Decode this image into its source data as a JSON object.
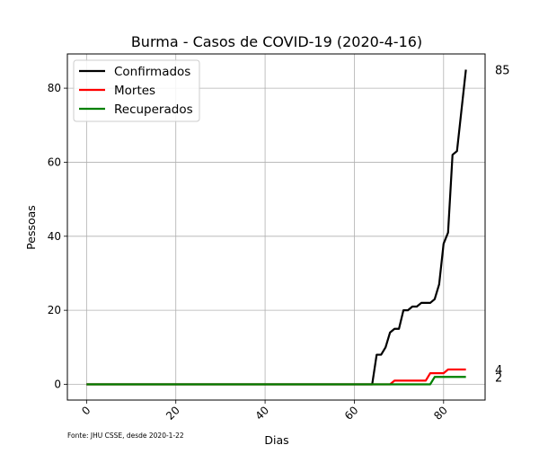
{
  "chart_data": {
    "type": "line",
    "title": "Burma - Casos de COVID-19 (2020-4-16)",
    "xlabel": "Dias",
    "ylabel": "Pessoas",
    "xlim": [
      -4.3,
      89.3
    ],
    "ylim": [
      -4.25,
      89.25
    ],
    "xticks": [
      0,
      20,
      40,
      60,
      80
    ],
    "yticks": [
      0,
      20,
      40,
      60,
      80
    ],
    "grid": true,
    "legend_position": "top-left",
    "source_note": "Fonte: JHU CSSE, desde 2020-1-22",
    "series": [
      {
        "name": "Confirmados",
        "color": "#000000",
        "end_label": "85",
        "points": [
          [
            0,
            0
          ],
          [
            64,
            0
          ],
          [
            65,
            8
          ],
          [
            66,
            8
          ],
          [
            67,
            10
          ],
          [
            68,
            14
          ],
          [
            69,
            15
          ],
          [
            70,
            15
          ],
          [
            71,
            20
          ],
          [
            72,
            20
          ],
          [
            73,
            21
          ],
          [
            74,
            21
          ],
          [
            75,
            22
          ],
          [
            76,
            22
          ],
          [
            77,
            22
          ],
          [
            78,
            23
          ],
          [
            79,
            27
          ],
          [
            80,
            38
          ],
          [
            81,
            41
          ],
          [
            82,
            62
          ],
          [
            83,
            63
          ],
          [
            84,
            74
          ],
          [
            85,
            85
          ]
        ]
      },
      {
        "name": "Mortes",
        "color": "#ff0000",
        "end_label": "4",
        "points": [
          [
            0,
            0
          ],
          [
            68,
            0
          ],
          [
            69,
            1
          ],
          [
            76,
            1
          ],
          [
            77,
            3
          ],
          [
            80,
            3
          ],
          [
            81,
            4
          ],
          [
            85,
            4
          ]
        ]
      },
      {
        "name": "Recuperados",
        "color": "#008000",
        "end_label": "2",
        "points": [
          [
            0,
            0
          ],
          [
            77,
            0
          ],
          [
            78,
            2
          ],
          [
            85,
            2
          ]
        ]
      }
    ]
  }
}
